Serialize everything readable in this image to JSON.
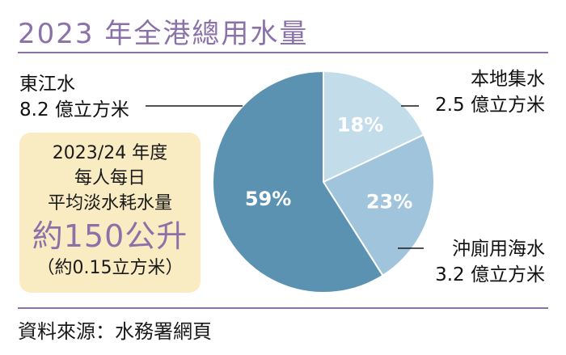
{
  "title": "2023 年全港總用水量",
  "source": "資料來源：水務署網頁",
  "labels": {
    "dongjiang": {
      "name": "東江水",
      "amount": "8.2 億立方米"
    },
    "local": {
      "name": "本地集水",
      "amount": "2.5 億立方米"
    },
    "flush": {
      "name": "沖廁用海水",
      "amount": "3.2 億立方米"
    }
  },
  "info": {
    "line1": "2023/24 年度",
    "line2": "每人每日",
    "line3": "平均淡水耗水量",
    "big": "約150公升",
    "sub": "（約0.15立方米）"
  },
  "colors": {
    "accent": "#8a72a8",
    "box_bg": "#f9ebc2",
    "dongjiang": "#5b92b2",
    "local": "#c3dcea",
    "flush": "#9fc4dc"
  },
  "chart_data": {
    "type": "pie",
    "title": "2023 年全港總用水量",
    "slices": [
      {
        "label": "本地集水",
        "value": 18,
        "display": "18%",
        "amount": "2.5 億立方米"
      },
      {
        "label": "沖廁用海水",
        "value": 23,
        "display": "23%",
        "amount": "3.2 億立方米"
      },
      {
        "label": "東江水",
        "value": 59,
        "display": "59%",
        "amount": "8.2 億立方米"
      }
    ]
  }
}
